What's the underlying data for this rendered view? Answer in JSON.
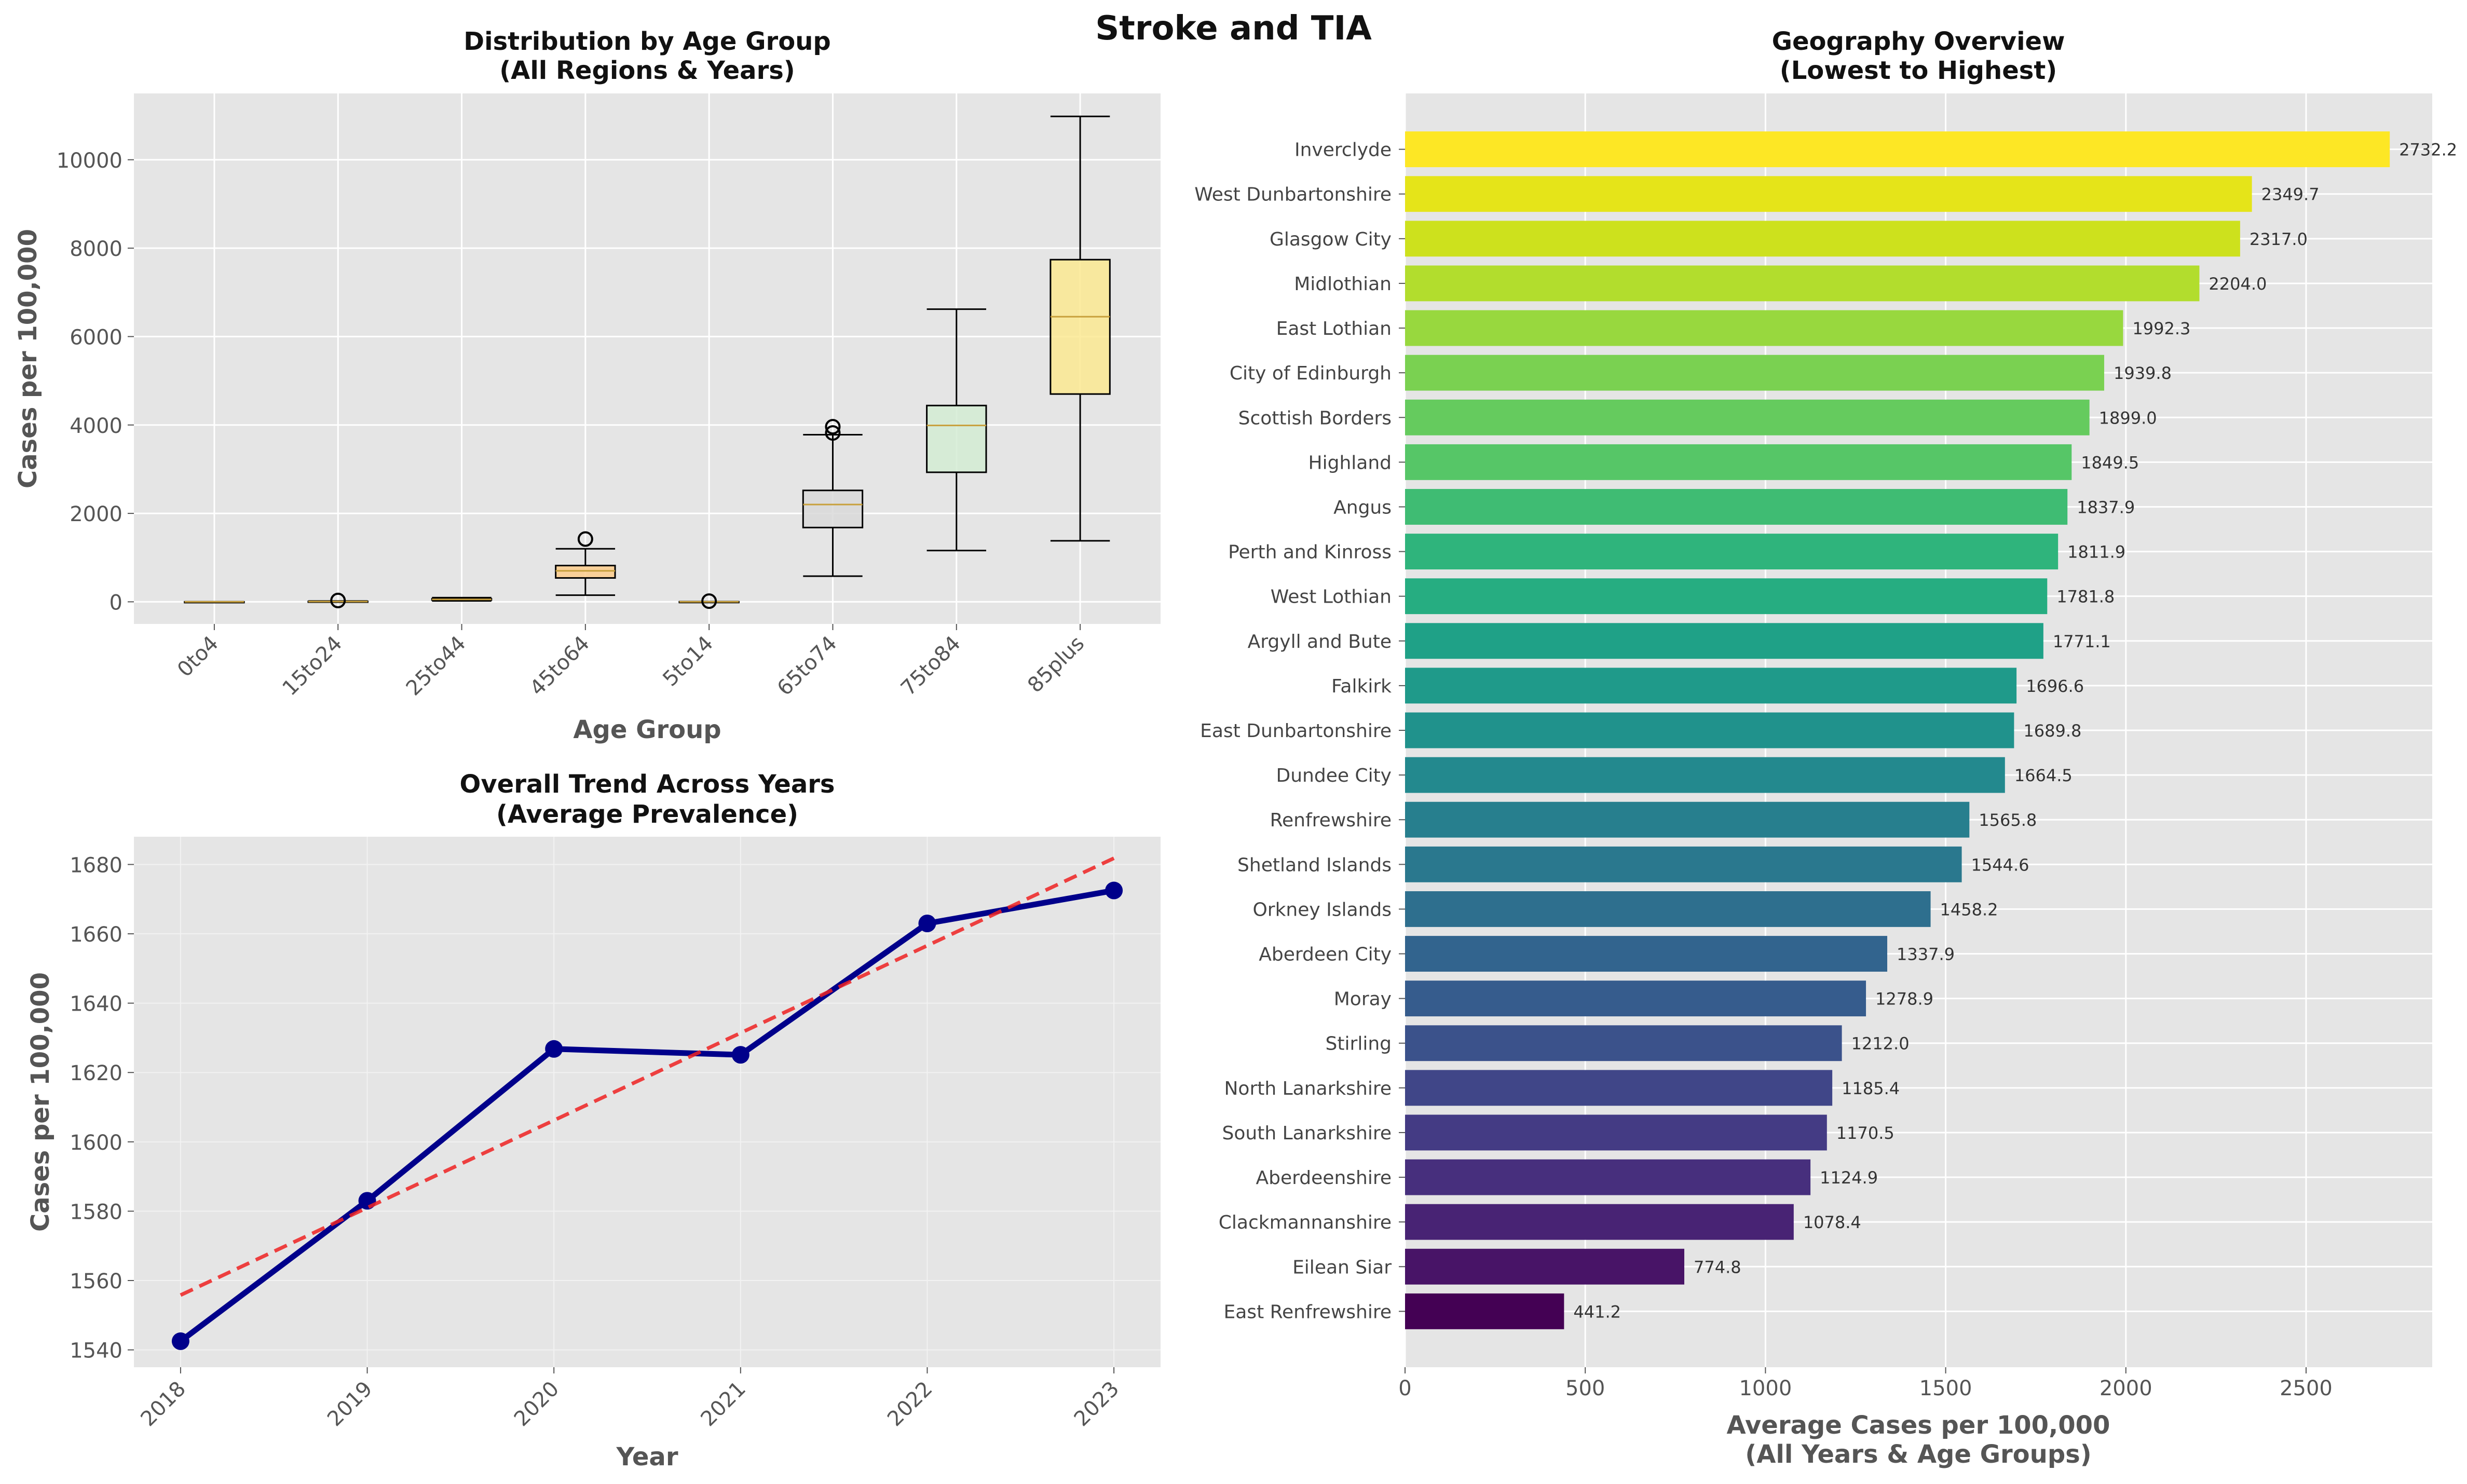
{
  "figure": {
    "title": "Stroke and TIA"
  },
  "chart_data": [
    {
      "type": "boxplot",
      "title": "Distribution by Age Group\n(All Regions & Years)",
      "xlabel": "Age Group",
      "ylabel": "Cases per 100,000",
      "ylim": [
        -500,
        11500
      ],
      "yticks": [
        0,
        2000,
        4000,
        6000,
        8000,
        10000
      ],
      "grid": true,
      "categories": [
        "0to4",
        "15to24",
        "25to44",
        "45to64",
        "5to14",
        "65to74",
        "75to84",
        "85plus"
      ],
      "boxes": [
        {
          "category": "0to4",
          "whislo": 0,
          "q1": 0,
          "median": 0,
          "q3": 0,
          "whishi": 0,
          "fliers": [],
          "color": "#fb9a99"
        },
        {
          "category": "15to24",
          "whislo": 0,
          "q1": 3,
          "median": 6,
          "q3": 10,
          "whishi": 18,
          "fliers": [
            30
          ],
          "color": "#b3e2cd"
        },
        {
          "category": "25to44",
          "whislo": 20,
          "q1": 40,
          "median": 55,
          "q3": 70,
          "whishi": 95,
          "fliers": [],
          "color": "#e5d8bd"
        },
        {
          "category": "45to64",
          "whislo": 150,
          "q1": 540,
          "median": 700,
          "q3": 820,
          "whishi": 1200,
          "fliers": [
            1420
          ],
          "color": "#fdcd8c"
        },
        {
          "category": "5to14",
          "whislo": 0,
          "q1": 0,
          "median": 1,
          "q3": 2,
          "whishi": 4,
          "fliers": [
            15
          ],
          "color": "#d4c8e4"
        },
        {
          "category": "65to74",
          "whislo": 580,
          "q1": 1680,
          "median": 2200,
          "q3": 2520,
          "whishi": 3780,
          "fliers": [
            3820,
            3960
          ],
          "color": "#d9d9d9"
        },
        {
          "category": "75to84",
          "whislo": 1160,
          "q1": 2930,
          "median": 3990,
          "q3": 4440,
          "whishi": 6620,
          "fliers": [],
          "color": "#d4ecd4"
        },
        {
          "category": "85plus",
          "whislo": 1380,
          "q1": 4700,
          "median": 6450,
          "q3": 7740,
          "whishi": 10980,
          "fliers": [],
          "color": "#fbe992"
        }
      ]
    },
    {
      "type": "line",
      "title": "Overall Trend Across Years\n(Average Prevalence)",
      "xlabel": "Year",
      "ylabel": "Cases per 100,000",
      "x": [
        "2018",
        "2019",
        "2020",
        "2021",
        "2022",
        "2023"
      ],
      "ylim": [
        1535,
        1688
      ],
      "yticks": [
        1540,
        1560,
        1580,
        1600,
        1620,
        1640,
        1660,
        1680
      ],
      "grid": true,
      "series": [
        {
          "values": [
            1542.5,
            1583.0,
            1626.8,
            1625.1,
            1663.0,
            1672.5
          ],
          "color": "#00008b",
          "style": "solid-markers"
        },
        {
          "values": [
            1555.8,
            1581.0,
            1606.2,
            1631.4,
            1656.6,
            1681.8
          ],
          "color": "#ee2222",
          "style": "dashed-trend"
        }
      ]
    },
    {
      "type": "bar",
      "orientation": "horizontal",
      "title": "Geography Overview\n(Lowest to Highest)",
      "xlabel": "Average Cases per 100,000\n(All Years & Age Groups)",
      "xlim": [
        0,
        2850
      ],
      "xticks": [
        0,
        500,
        1000,
        1500,
        2000,
        2500
      ],
      "grid": true,
      "colormap": "viridis",
      "categories": [
        "Inverclyde",
        "West Dunbartonshire",
        "Glasgow City",
        "Midlothian",
        "East Lothian",
        "City of Edinburgh",
        "Scottish Borders",
        "Highland",
        "Angus",
        "Perth and Kinross",
        "West Lothian",
        "Argyll and Bute",
        "Falkirk",
        "East Dunbartonshire",
        "Dundee City",
        "Renfrewshire",
        "Shetland Islands",
        "Orkney Islands",
        "Aberdeen City",
        "Moray",
        "Stirling",
        "North Lanarkshire",
        "South Lanarkshire",
        "Aberdeenshire",
        "Clackmannanshire",
        "Eilean Siar",
        "East Renfrewshire"
      ],
      "values": [
        2732.2,
        2349.7,
        2317.0,
        2204.0,
        1992.3,
        1939.8,
        1899.0,
        1849.5,
        1837.9,
        1811.9,
        1781.8,
        1771.1,
        1696.6,
        1689.8,
        1664.5,
        1565.8,
        1544.6,
        1458.2,
        1337.9,
        1278.9,
        1212.0,
        1185.4,
        1170.5,
        1124.9,
        1078.4,
        774.8,
        441.2
      ],
      "value_labels": [
        "2732.2",
        "2349.7",
        "2317.0",
        "2204.0",
        "1992.3",
        "1939.8",
        "1899.0",
        "1849.5",
        "1837.9",
        "1811.9",
        "1781.8",
        "1771.1",
        "1696.6",
        "1689.8",
        "1664.5",
        "1565.8",
        "1544.6",
        "1458.2",
        "1337.9",
        "1278.9",
        "1212.0",
        "1185.4",
        "1170.5",
        "1124.9",
        "1078.4",
        "774.8",
        "441.2"
      ],
      "colors": [
        "#fde725",
        "#e5e419",
        "#cde11d",
        "#b2dd2d",
        "#98d83e",
        "#7ad151",
        "#65cb5e",
        "#56c667",
        "#3fbc73",
        "#2fb47c",
        "#26ad81",
        "#1fa187",
        "#1f9a8a",
        "#20928c",
        "#23898e",
        "#277f8e",
        "#2a788e",
        "#2e6f8e",
        "#32648e",
        "#365c8d",
        "#3b528b",
        "#404688",
        "#443b84",
        "#472f7d",
        "#482374",
        "#481467",
        "#440154"
      ]
    }
  ]
}
